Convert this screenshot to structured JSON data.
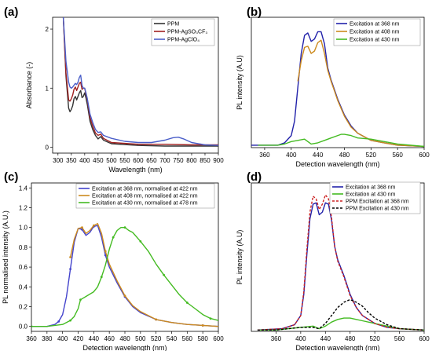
{
  "chart_data": [
    {
      "panel": "(a)",
      "type": "line",
      "xlabel": "Wavelength (nm)",
      "ylabel": "Absorbance (-)",
      "xlim": [
        280,
        900
      ],
      "ylim": [
        -0.1,
        2.2
      ],
      "xticks": [
        300,
        350,
        400,
        450,
        500,
        550,
        600,
        650,
        700,
        750,
        800,
        850,
        900
      ],
      "yticks": [
        0,
        1,
        2
      ],
      "legend_position": "top-right",
      "series": [
        {
          "name": "PPM",
          "color": "#333333",
          "x": [
            320,
            330,
            340,
            345,
            350,
            355,
            360,
            365,
            370,
            375,
            380,
            385,
            390,
            395,
            400,
            405,
            410,
            420,
            430,
            440,
            450,
            460,
            470,
            500,
            600,
            700,
            800,
            900
          ],
          "y": [
            2.2,
            1.2,
            0.66,
            0.6,
            0.64,
            0.7,
            0.82,
            0.86,
            0.8,
            0.86,
            0.92,
            0.96,
            0.84,
            0.86,
            0.92,
            0.83,
            0.72,
            0.44,
            0.3,
            0.2,
            0.14,
            0.18,
            0.12,
            0.06,
            0.03,
            0.02,
            0.02,
            0.02
          ]
        },
        {
          "name": "PPM-AgSO₃CF₃",
          "color": "#a02020",
          "x": [
            320,
            330,
            340,
            345,
            350,
            355,
            360,
            365,
            370,
            375,
            380,
            385,
            390,
            395,
            400,
            405,
            410,
            420,
            430,
            440,
            450,
            460,
            470,
            500,
            600,
            700,
            800,
            900
          ],
          "y": [
            2.2,
            1.25,
            0.8,
            0.78,
            0.82,
            0.88,
            0.98,
            1.02,
            0.96,
            1.02,
            1.08,
            1.1,
            0.98,
            1.0,
            1.0,
            0.9,
            0.8,
            0.5,
            0.36,
            0.24,
            0.2,
            0.22,
            0.15,
            0.08,
            0.05,
            0.05,
            0.04,
            0.04
          ]
        },
        {
          "name": "PPM-AgClO₄",
          "color": "#4a5ec9",
          "x": [
            320,
            330,
            340,
            345,
            350,
            355,
            360,
            365,
            370,
            375,
            380,
            385,
            390,
            395,
            400,
            405,
            410,
            420,
            430,
            440,
            450,
            460,
            470,
            500,
            550,
            600,
            650,
            700,
            730,
            750,
            770,
            800,
            850,
            900
          ],
          "y": [
            2.2,
            1.45,
            1.1,
            1.02,
            1.0,
            1.02,
            1.05,
            1.08,
            1.06,
            1.1,
            1.18,
            1.22,
            1.05,
            1.0,
            1.0,
            0.92,
            0.82,
            0.56,
            0.42,
            0.3,
            0.25,
            0.26,
            0.2,
            0.15,
            0.1,
            0.08,
            0.08,
            0.12,
            0.16,
            0.17,
            0.14,
            0.08,
            0.04,
            0.03
          ]
        }
      ]
    },
    {
      "panel": "(b)",
      "type": "line",
      "xlabel": "Detection wavelength (nm)",
      "ylabel": "PL intensity (A.U)",
      "xlim": [
        340,
        600
      ],
      "ylim": [
        0,
        1.08
      ],
      "xticks": [
        360,
        400,
        440,
        480,
        520,
        560,
        600
      ],
      "legend_position": "top-right",
      "series": [
        {
          "name": "Excitation at 368 nm",
          "color": "#2222aa",
          "x": [
            340,
            380,
            390,
            400,
            405,
            410,
            415,
            420,
            425,
            430,
            435,
            440,
            445,
            450,
            455,
            460,
            465,
            470,
            480,
            490,
            500,
            520,
            540,
            560,
            600
          ],
          "y": [
            0.02,
            0.02,
            0.04,
            0.1,
            0.22,
            0.5,
            0.78,
            0.93,
            0.95,
            0.88,
            0.9,
            0.96,
            0.96,
            0.86,
            0.66,
            0.56,
            0.48,
            0.4,
            0.27,
            0.18,
            0.12,
            0.06,
            0.04,
            0.02,
            0.01
          ]
        },
        {
          "name": "Excitation at 408 nm",
          "color": "#cc8a1e",
          "x": [
            410,
            415,
            420,
            425,
            430,
            435,
            440,
            445,
            450,
            455,
            460,
            465,
            470,
            480,
            490,
            500,
            520,
            540,
            560,
            600
          ],
          "y": [
            0.55,
            0.72,
            0.83,
            0.84,
            0.78,
            0.8,
            0.87,
            0.89,
            0.78,
            0.64,
            0.55,
            0.47,
            0.39,
            0.26,
            0.17,
            0.12,
            0.06,
            0.04,
            0.02,
            0.01
          ]
        },
        {
          "name": "Excitation at 430 nm",
          "color": "#44bb22",
          "x": [
            350,
            370,
            380,
            390,
            395,
            400,
            410,
            420,
            430,
            440,
            450,
            460,
            470,
            475,
            480,
            490,
            500,
            520,
            540,
            560,
            580,
            600
          ],
          "y": [
            0.02,
            0.02,
            0.02,
            0.03,
            0.04,
            0.05,
            0.06,
            0.07,
            0.03,
            0.04,
            0.06,
            0.08,
            0.1,
            0.11,
            0.11,
            0.1,
            0.08,
            0.07,
            0.05,
            0.03,
            0.02,
            0.01
          ]
        }
      ]
    },
    {
      "panel": "(c)",
      "type": "line",
      "xlabel": "Detection wavelength (nm)",
      "ylabel": "PL normalised intensity (A.U.)",
      "xlim": [
        360,
        600
      ],
      "ylim": [
        -0.05,
        1.45
      ],
      "xticks": [
        360,
        380,
        400,
        420,
        440,
        460,
        480,
        500,
        520,
        540,
        560,
        580,
        600
      ],
      "yticks": [
        0.0,
        0.2,
        0.4,
        0.6,
        0.8,
        1.0,
        1.2,
        1.4
      ],
      "legend_position": "top-right",
      "series": [
        {
          "name": "Excitation at 368 nm, normalised at 422 nm",
          "color": "#4444cc",
          "x": [
            360,
            380,
            390,
            395,
            400,
            405,
            410,
            415,
            420,
            425,
            430,
            435,
            440,
            445,
            450,
            455,
            460,
            470,
            480,
            490,
            500,
            520,
            540,
            560,
            580,
            600
          ],
          "y": [
            0.0,
            0.0,
            0.02,
            0.05,
            0.12,
            0.3,
            0.58,
            0.85,
            0.99,
            0.98,
            0.92,
            0.95,
            1.01,
            1.02,
            0.9,
            0.72,
            0.6,
            0.44,
            0.3,
            0.2,
            0.14,
            0.07,
            0.04,
            0.02,
            0.01,
            0.0
          ]
        },
        {
          "name": "Excitation at 408 nm, normalised at 422 nm",
          "color": "#cc8a1e",
          "x": [
            410,
            415,
            420,
            425,
            430,
            435,
            440,
            445,
            450,
            455,
            460,
            470,
            480,
            490,
            500,
            520,
            540,
            560,
            580,
            600
          ],
          "y": [
            0.7,
            0.88,
            0.99,
            1.0,
            0.94,
            0.97,
            1.02,
            1.04,
            0.94,
            0.76,
            0.63,
            0.46,
            0.31,
            0.21,
            0.15,
            0.07,
            0.04,
            0.02,
            0.01,
            0.0
          ]
        },
        {
          "name": "Excitation at 430 nm, normalised at 478 nm",
          "color": "#44bb22",
          "x": [
            360,
            380,
            400,
            410,
            415,
            420,
            423,
            440,
            445,
            450,
            455,
            460,
            465,
            470,
            475,
            480,
            485,
            490,
            500,
            510,
            520,
            530,
            540,
            550,
            560,
            570,
            580,
            590,
            600
          ],
          "y": [
            0.0,
            0.0,
            0.02,
            0.06,
            0.1,
            0.18,
            0.27,
            0.35,
            0.4,
            0.5,
            0.62,
            0.78,
            0.9,
            0.97,
            1.0,
            1.0,
            0.97,
            0.95,
            0.86,
            0.76,
            0.63,
            0.52,
            0.42,
            0.32,
            0.24,
            0.18,
            0.12,
            0.08,
            0.06
          ]
        }
      ]
    },
    {
      "panel": "(d)",
      "type": "line",
      "xlabel": "Detection wavelength (nm)",
      "ylabel": "PL intensity (A.U)",
      "xlim": [
        320,
        600
      ],
      "ylim": [
        0,
        1.12
      ],
      "xticks": [
        360,
        400,
        440,
        480,
        520,
        560,
        600
      ],
      "legend_position": "top-right",
      "series": [
        {
          "name": "Excitation at 368 nm",
          "color": "#2222aa",
          "dashed": false,
          "x": [
            330,
            370,
            390,
            400,
            405,
            410,
            415,
            420,
            425,
            430,
            435,
            440,
            445,
            450,
            455,
            460,
            470,
            480,
            490,
            500,
            520,
            540,
            560,
            600
          ],
          "y": [
            0.01,
            0.02,
            0.05,
            0.12,
            0.28,
            0.58,
            0.85,
            0.96,
            0.97,
            0.88,
            0.9,
            0.97,
            0.96,
            0.84,
            0.64,
            0.54,
            0.42,
            0.28,
            0.18,
            0.12,
            0.06,
            0.03,
            0.02,
            0.01
          ]
        },
        {
          "name": "Excitation at 430 nm",
          "color": "#44bb22",
          "dashed": false,
          "x": [
            330,
            360,
            380,
            400,
            420,
            430,
            440,
            450,
            460,
            470,
            480,
            490,
            500,
            520,
            540,
            560,
            600
          ],
          "y": [
            0.01,
            0.01,
            0.02,
            0.03,
            0.04,
            0.02,
            0.04,
            0.07,
            0.09,
            0.1,
            0.1,
            0.09,
            0.08,
            0.06,
            0.04,
            0.02,
            0.01
          ]
        },
        {
          "name": "PPM  Excitation at 368 nm",
          "color": "#cc2222",
          "dashed": true,
          "x": [
            330,
            370,
            390,
            400,
            405,
            410,
            415,
            420,
            425,
            430,
            435,
            440,
            445,
            450,
            455,
            460,
            470,
            480,
            490,
            500,
            520,
            540,
            560,
            600
          ],
          "y": [
            0.01,
            0.02,
            0.05,
            0.12,
            0.3,
            0.62,
            0.9,
            1.02,
            1.0,
            0.92,
            0.96,
            1.03,
            1.0,
            0.86,
            0.64,
            0.53,
            0.41,
            0.27,
            0.18,
            0.12,
            0.06,
            0.03,
            0.02,
            0.01
          ]
        },
        {
          "name": "PPM  Excitation at 430 nm",
          "color": "#000000",
          "dashed": true,
          "x": [
            330,
            360,
            380,
            400,
            420,
            430,
            440,
            450,
            460,
            470,
            480,
            490,
            500,
            510,
            520,
            540,
            560,
            600
          ],
          "y": [
            0.01,
            0.01,
            0.02,
            0.03,
            0.03,
            0.02,
            0.06,
            0.12,
            0.18,
            0.22,
            0.24,
            0.22,
            0.19,
            0.14,
            0.1,
            0.05,
            0.02,
            0.01
          ]
        }
      ]
    }
  ]
}
